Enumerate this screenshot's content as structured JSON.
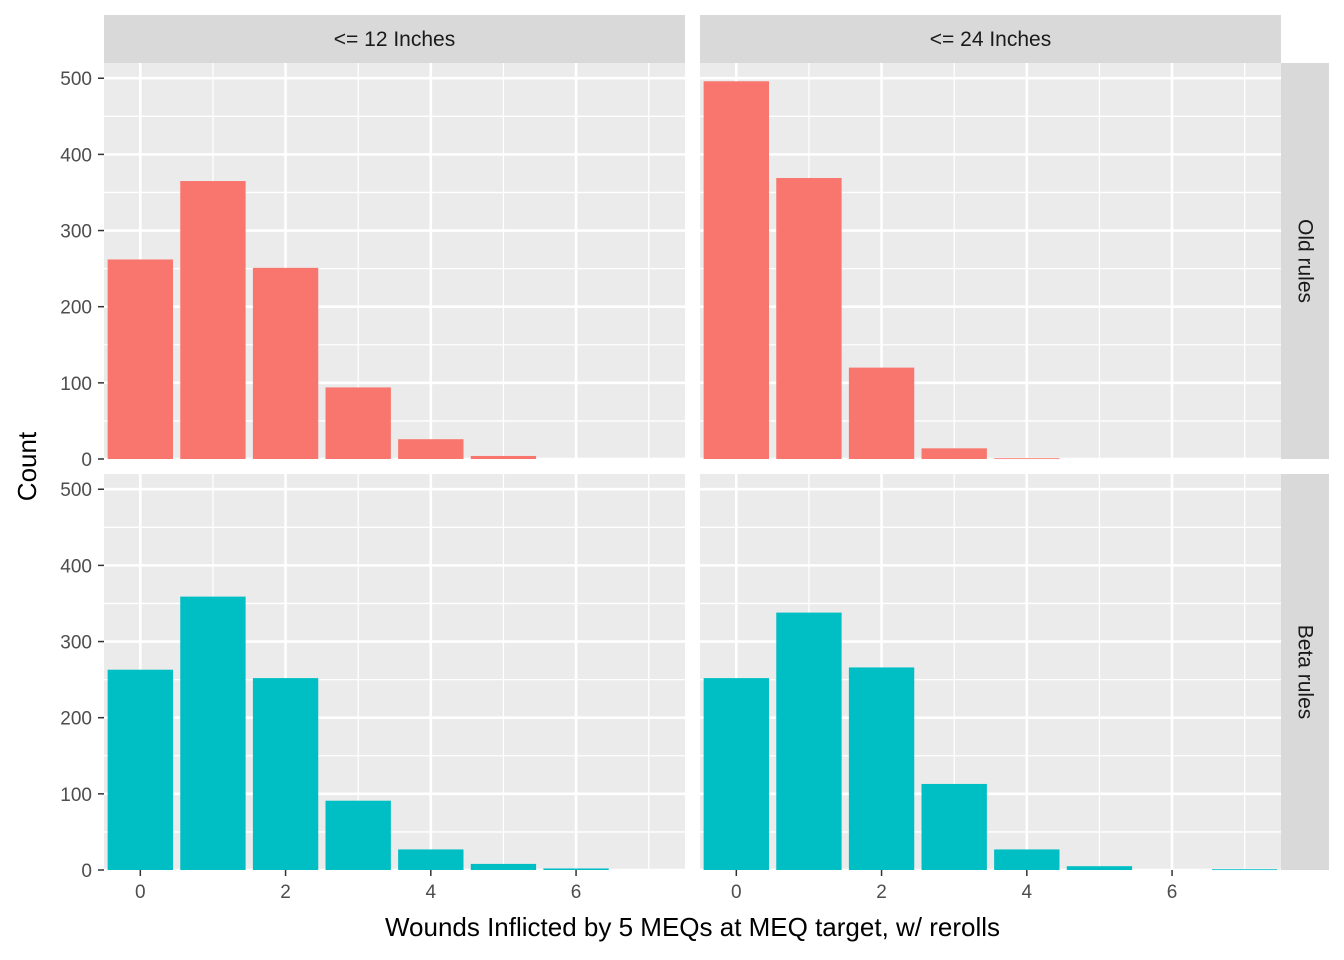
{
  "chart_data": {
    "type": "bar",
    "xlabel": "Wounds Inflicted by 5 MEQs at MEQ target, w/ rerolls",
    "ylabel": "Count",
    "x_ticks": [
      "0",
      "2",
      "4",
      "6"
    ],
    "y_ticks": [
      "0",
      "100",
      "200",
      "300",
      "400",
      "500"
    ],
    "xlim": [
      -0.5,
      7.5
    ],
    "ylim": [
      0,
      520
    ],
    "grid": true,
    "legend": "none",
    "facet_columns": [
      "<= 12 Inches",
      "<= 24 Inches"
    ],
    "facet_rows": [
      "Old rules",
      "Beta rules"
    ],
    "row_colors": [
      "#F8766D",
      "#00BFC4"
    ],
    "panels": [
      {
        "row": "Old rules",
        "col": "<= 12 Inches",
        "x": [
          0,
          1,
          2,
          3,
          4,
          5
        ],
        "values": [
          262,
          365,
          251,
          94,
          26,
          4
        ]
      },
      {
        "row": "Old rules",
        "col": "<= 24 Inches",
        "x": [
          0,
          1,
          2,
          3,
          4
        ],
        "values": [
          496,
          369,
          120,
          14,
          1
        ]
      },
      {
        "row": "Beta rules",
        "col": "<= 12 Inches",
        "x": [
          0,
          1,
          2,
          3,
          4,
          5,
          6
        ],
        "values": [
          263,
          359,
          252,
          91,
          27,
          8,
          2
        ]
      },
      {
        "row": "Beta rules",
        "col": "<= 24 Inches",
        "x": [
          0,
          1,
          2,
          3,
          4,
          5,
          7
        ],
        "values": [
          252,
          338,
          266,
          113,
          27,
          5,
          1
        ]
      }
    ]
  }
}
